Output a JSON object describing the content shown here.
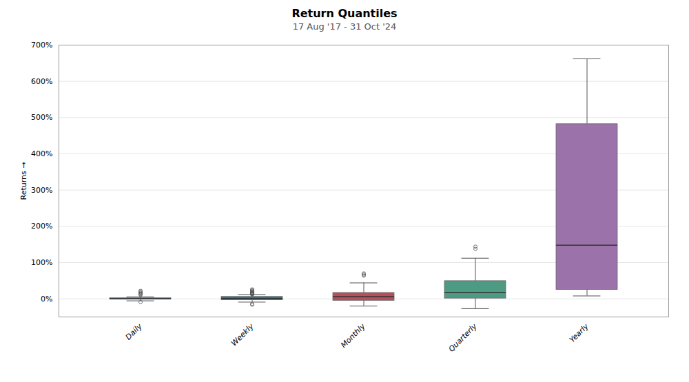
{
  "chart_data": {
    "type": "box",
    "title": "Return Quantiles",
    "subtitle": "17 Aug '17 - 31 Oct '24",
    "ylabel": "Returns",
    "categories": [
      "Daily",
      "Weekly",
      "Monthly",
      "Quarterly",
      "Yearly"
    ],
    "boxes": [
      {
        "q1": -0.015,
        "median": 0.003,
        "q3": 0.018,
        "whislo": -0.055,
        "whishi": 0.055,
        "fliers_low": [
          -0.09
        ],
        "fliers_high": [
          0.22,
          0.2,
          0.17,
          0.15,
          0.13,
          0.11
        ]
      },
      {
        "q1": -0.035,
        "median": 0.006,
        "q3": 0.055,
        "whislo": -0.09,
        "whishi": 0.12,
        "fliers_low": [
          -0.16,
          -0.14
        ],
        "fliers_high": [
          0.26,
          0.24,
          0.22,
          0.2,
          0.18,
          0.17,
          0.16,
          0.15,
          0.14,
          0.13,
          0.12
        ]
      },
      {
        "q1": -0.05,
        "median": 0.06,
        "q3": 0.165,
        "whislo": -0.2,
        "whishi": 0.44,
        "fliers_low": [],
        "fliers_high": [
          0.7,
          0.67,
          0.64
        ]
      },
      {
        "q1": 0.01,
        "median": 0.18,
        "q3": 0.49,
        "whislo": -0.27,
        "whishi": 1.12,
        "fliers_low": [],
        "fliers_high": [
          1.38,
          1.44
        ]
      },
      {
        "q1": 0.25,
        "median": 1.48,
        "q3": 4.82,
        "whislo": 0.08,
        "whishi": 6.62,
        "fliers_low": [],
        "fliers_high": []
      }
    ],
    "colors": [
      "#3a6b8a",
      "#3a7090",
      "#b5515d",
      "#4c9b82",
      "#9b72aa"
    ],
    "ylim": [
      -0.5,
      7.0
    ],
    "yticks": [
      {
        "value": 0.0,
        "label": "0%"
      },
      {
        "value": 1.0,
        "label": "100%"
      },
      {
        "value": 2.0,
        "label": "200%"
      },
      {
        "value": 3.0,
        "label": "300%"
      },
      {
        "value": 4.0,
        "label": "400%"
      },
      {
        "value": 5.0,
        "label": "500%"
      },
      {
        "value": 6.0,
        "label": "600%"
      },
      {
        "value": 7.0,
        "label": "700%"
      }
    ],
    "grid": true
  }
}
